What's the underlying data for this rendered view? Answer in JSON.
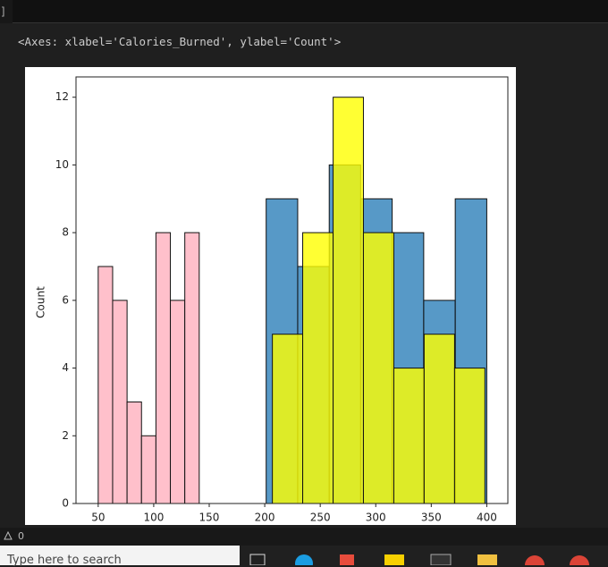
{
  "prompt": "]",
  "output_text": "<Axes: xlabel='Calories_Burned', ylabel='Count'>",
  "chart_data": {
    "type": "histogram",
    "ylabel": "Count",
    "xlim": [
      30,
      419
    ],
    "ylim": [
      0,
      12.6
    ],
    "xticks": [
      50,
      100,
      150,
      200,
      250,
      300,
      350,
      400
    ],
    "yticks": [
      0,
      2,
      4,
      6,
      8,
      10,
      12
    ],
    "series": [
      {
        "color": "#ffc0cb",
        "bins": [
          50,
          63,
          76,
          89,
          102,
          115,
          128,
          141
        ],
        "values": [
          7,
          6,
          3,
          2,
          8,
          6,
          8
        ]
      },
      {
        "color": "#1f77b4",
        "bins": [
          201.3,
          229.7,
          258.1,
          286.4,
          314.8,
          343.2,
          371.6,
          400
        ],
        "values": [
          9,
          7,
          10,
          9,
          8,
          6,
          9
        ]
      },
      {
        "color": "#ffff00",
        "bins": [
          206.9,
          234.2,
          261.6,
          288.9,
          316.3,
          343.6,
          371,
          398.3
        ],
        "values": [
          5,
          8,
          12,
          8,
          4,
          5,
          4
        ]
      }
    ]
  },
  "status": {
    "warnings": "0"
  },
  "taskbar": {
    "search_placeholder": "Type here to search"
  }
}
